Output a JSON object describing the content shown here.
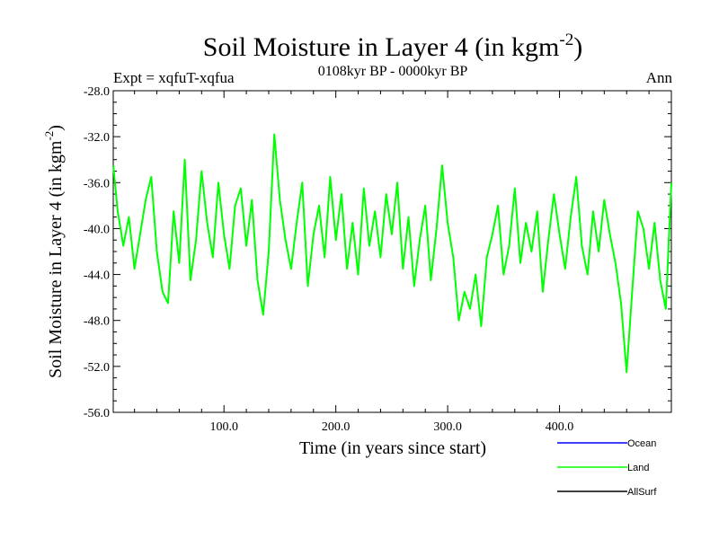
{
  "chart_data": {
    "type": "line",
    "title": "Soil Moisture in Layer 4 (in kgm",
    "title_superscript": "-2",
    "title_close": ")",
    "subtitle": "0108kyr BP - 0000kyr BP",
    "left_label": "Expt = xqfuT-xqfua",
    "right_label": "Ann",
    "xlabel": "Time (in years since start)",
    "ylabel": "Soil Moisture in Layer 4 (in kgm",
    "ylabel_superscript": "-2",
    "ylabel_close": ")",
    "xlim": [
      1,
      500
    ],
    "ylim": [
      -56,
      -28
    ],
    "x_ticks": [
      100,
      200,
      300,
      400
    ],
    "x_tick_labels": [
      "100.0",
      "200.0",
      "300.0",
      "400.0"
    ],
    "y_ticks": [
      -28,
      -32,
      -36,
      -40,
      -44,
      -48,
      -52,
      -56
    ],
    "y_tick_labels": [
      "-28.0",
      "-32.0",
      "-36.0",
      "-40.0",
      "-44.0",
      "-48.0",
      "-52.0",
      "-56.0"
    ],
    "legend": [
      {
        "name": "Ocean",
        "color": "#0000ff"
      },
      {
        "name": "Land",
        "color": "#00ff00"
      },
      {
        "name": "AllSurf",
        "color": "#000000"
      }
    ],
    "series": [
      {
        "name": "Land",
        "color": "#00ff00",
        "x": [
          1,
          5,
          10,
          15,
          20,
          25,
          30,
          35,
          40,
          45,
          50,
          55,
          60,
          65,
          70,
          75,
          80,
          85,
          90,
          95,
          100,
          105,
          110,
          115,
          120,
          125,
          130,
          135,
          140,
          145,
          150,
          155,
          160,
          165,
          170,
          175,
          180,
          185,
          190,
          195,
          200,
          205,
          210,
          215,
          220,
          225,
          230,
          235,
          240,
          245,
          250,
          255,
          260,
          265,
          270,
          275,
          280,
          285,
          290,
          295,
          300,
          305,
          310,
          315,
          320,
          325,
          330,
          335,
          340,
          345,
          350,
          355,
          360,
          365,
          370,
          375,
          380,
          385,
          390,
          395,
          400,
          405,
          410,
          415,
          420,
          425,
          430,
          435,
          440,
          445,
          450,
          455,
          460,
          465,
          470,
          475,
          480,
          485,
          490,
          495,
          500
        ],
        "values": [
          -34.5,
          -38.5,
          -41.5,
          -39.0,
          -43.5,
          -40.5,
          -37.5,
          -35.5,
          -42.0,
          -45.5,
          -46.5,
          -38.5,
          -43.0,
          -34.0,
          -44.5,
          -41.0,
          -35.0,
          -39.5,
          -42.5,
          -36.0,
          -40.5,
          -43.5,
          -38.0,
          -36.5,
          -41.5,
          -37.5,
          -44.5,
          -47.5,
          -42.0,
          -31.8,
          -37.5,
          -41.0,
          -43.5,
          -39.5,
          -36.0,
          -45.0,
          -40.5,
          -38.0,
          -42.5,
          -35.5,
          -41.0,
          -37.0,
          -43.5,
          -39.5,
          -44.0,
          -36.5,
          -41.5,
          -38.5,
          -42.5,
          -37.0,
          -40.5,
          -36.0,
          -43.5,
          -39.0,
          -45.0,
          -41.0,
          -38.0,
          -44.5,
          -40.0,
          -34.5,
          -39.5,
          -42.5,
          -48.0,
          -45.5,
          -47.0,
          -44.0,
          -48.5,
          -42.5,
          -40.5,
          -38.0,
          -44.0,
          -41.5,
          -36.5,
          -43.0,
          -39.5,
          -42.0,
          -38.5,
          -45.5,
          -41.0,
          -37.0,
          -40.5,
          -43.5,
          -39.0,
          -35.5,
          -41.5,
          -44.0,
          -38.5,
          -42.0,
          -37.5,
          -40.5,
          -43.0,
          -46.5,
          -52.5,
          -45.5,
          -38.5,
          -40.0,
          -43.5,
          -39.5,
          -44.5,
          -47.0,
          -36.0
        ]
      },
      {
        "name": "Ocean",
        "color": "#0000ff",
        "x": [],
        "values": []
      },
      {
        "name": "AllSurf",
        "color": "#000000",
        "x": [],
        "values": []
      }
    ]
  }
}
